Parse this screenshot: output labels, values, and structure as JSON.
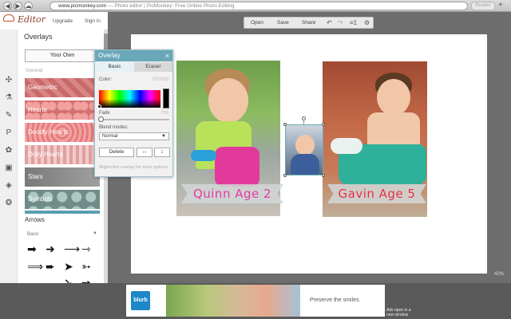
{
  "browser": {
    "url_host": "www.picmonkey.com",
    "page_title": "Photo editor | PicMonkey: Free Online Photo Editing",
    "reader_label": "Reader",
    "back_glyph": "◀",
    "forward_glyph": "▶",
    "cloud_glyph": "☁",
    "plus_glyph": "+"
  },
  "app": {
    "logo_text": "Editor",
    "upgrade_label": "Upgrade",
    "signin_label": "Sign in"
  },
  "rail_icons": [
    "crop-icon",
    "flask-icon",
    "brush-icon",
    "text-icon",
    "butterfly-icon",
    "frame-icon",
    "texture-icon",
    "pumpkin-icon"
  ],
  "panel": {
    "title": "Overlays",
    "your_own_label": "Your Own",
    "section_general": "General",
    "categories": [
      "Geometric",
      "Hearts",
      "Doodly Hearts",
      "Doily Hearts",
      "Stars",
      "Symbols"
    ],
    "arrows_title": "Arrows",
    "basic_label": "Basic",
    "basic_caret": "▼"
  },
  "overlay_dialog": {
    "title": "Overlay",
    "close_glyph": "×",
    "tabs": [
      "Basic",
      "Eraser"
    ],
    "color_label": "Color:",
    "color_value": "000000",
    "fade_label": "Fade",
    "fade_value": "0%",
    "blend_label": "Blend modes:",
    "blend_value": "Normal",
    "blend_caret": "▼",
    "delete_label": "Delete",
    "flip_h_glyph": "↔",
    "flip_v_glyph": "↕",
    "hint": "Right-click overlay for more options.",
    "swatch_color": "#000000",
    "fade_percent": 0
  },
  "toolbar": {
    "open_label": "Open",
    "save_label": "Save",
    "share_label": "Share",
    "undo_glyph": "↶",
    "redo_glyph": "↷",
    "layers_label": "≡1",
    "gear_glyph": "⚙"
  },
  "canvas": {
    "left_caption": "Quinn  Age 2",
    "right_caption": "Gavin  Age 5",
    "zoom_label": "42%"
  },
  "ad": {
    "brand": "blurb",
    "tagline": "Preserve the smiles.",
    "note": "Ads open in a new window"
  },
  "colors": {
    "accent": "#6aa8b8",
    "left_caption": "#e83aa2",
    "right_caption": "#e83048"
  }
}
